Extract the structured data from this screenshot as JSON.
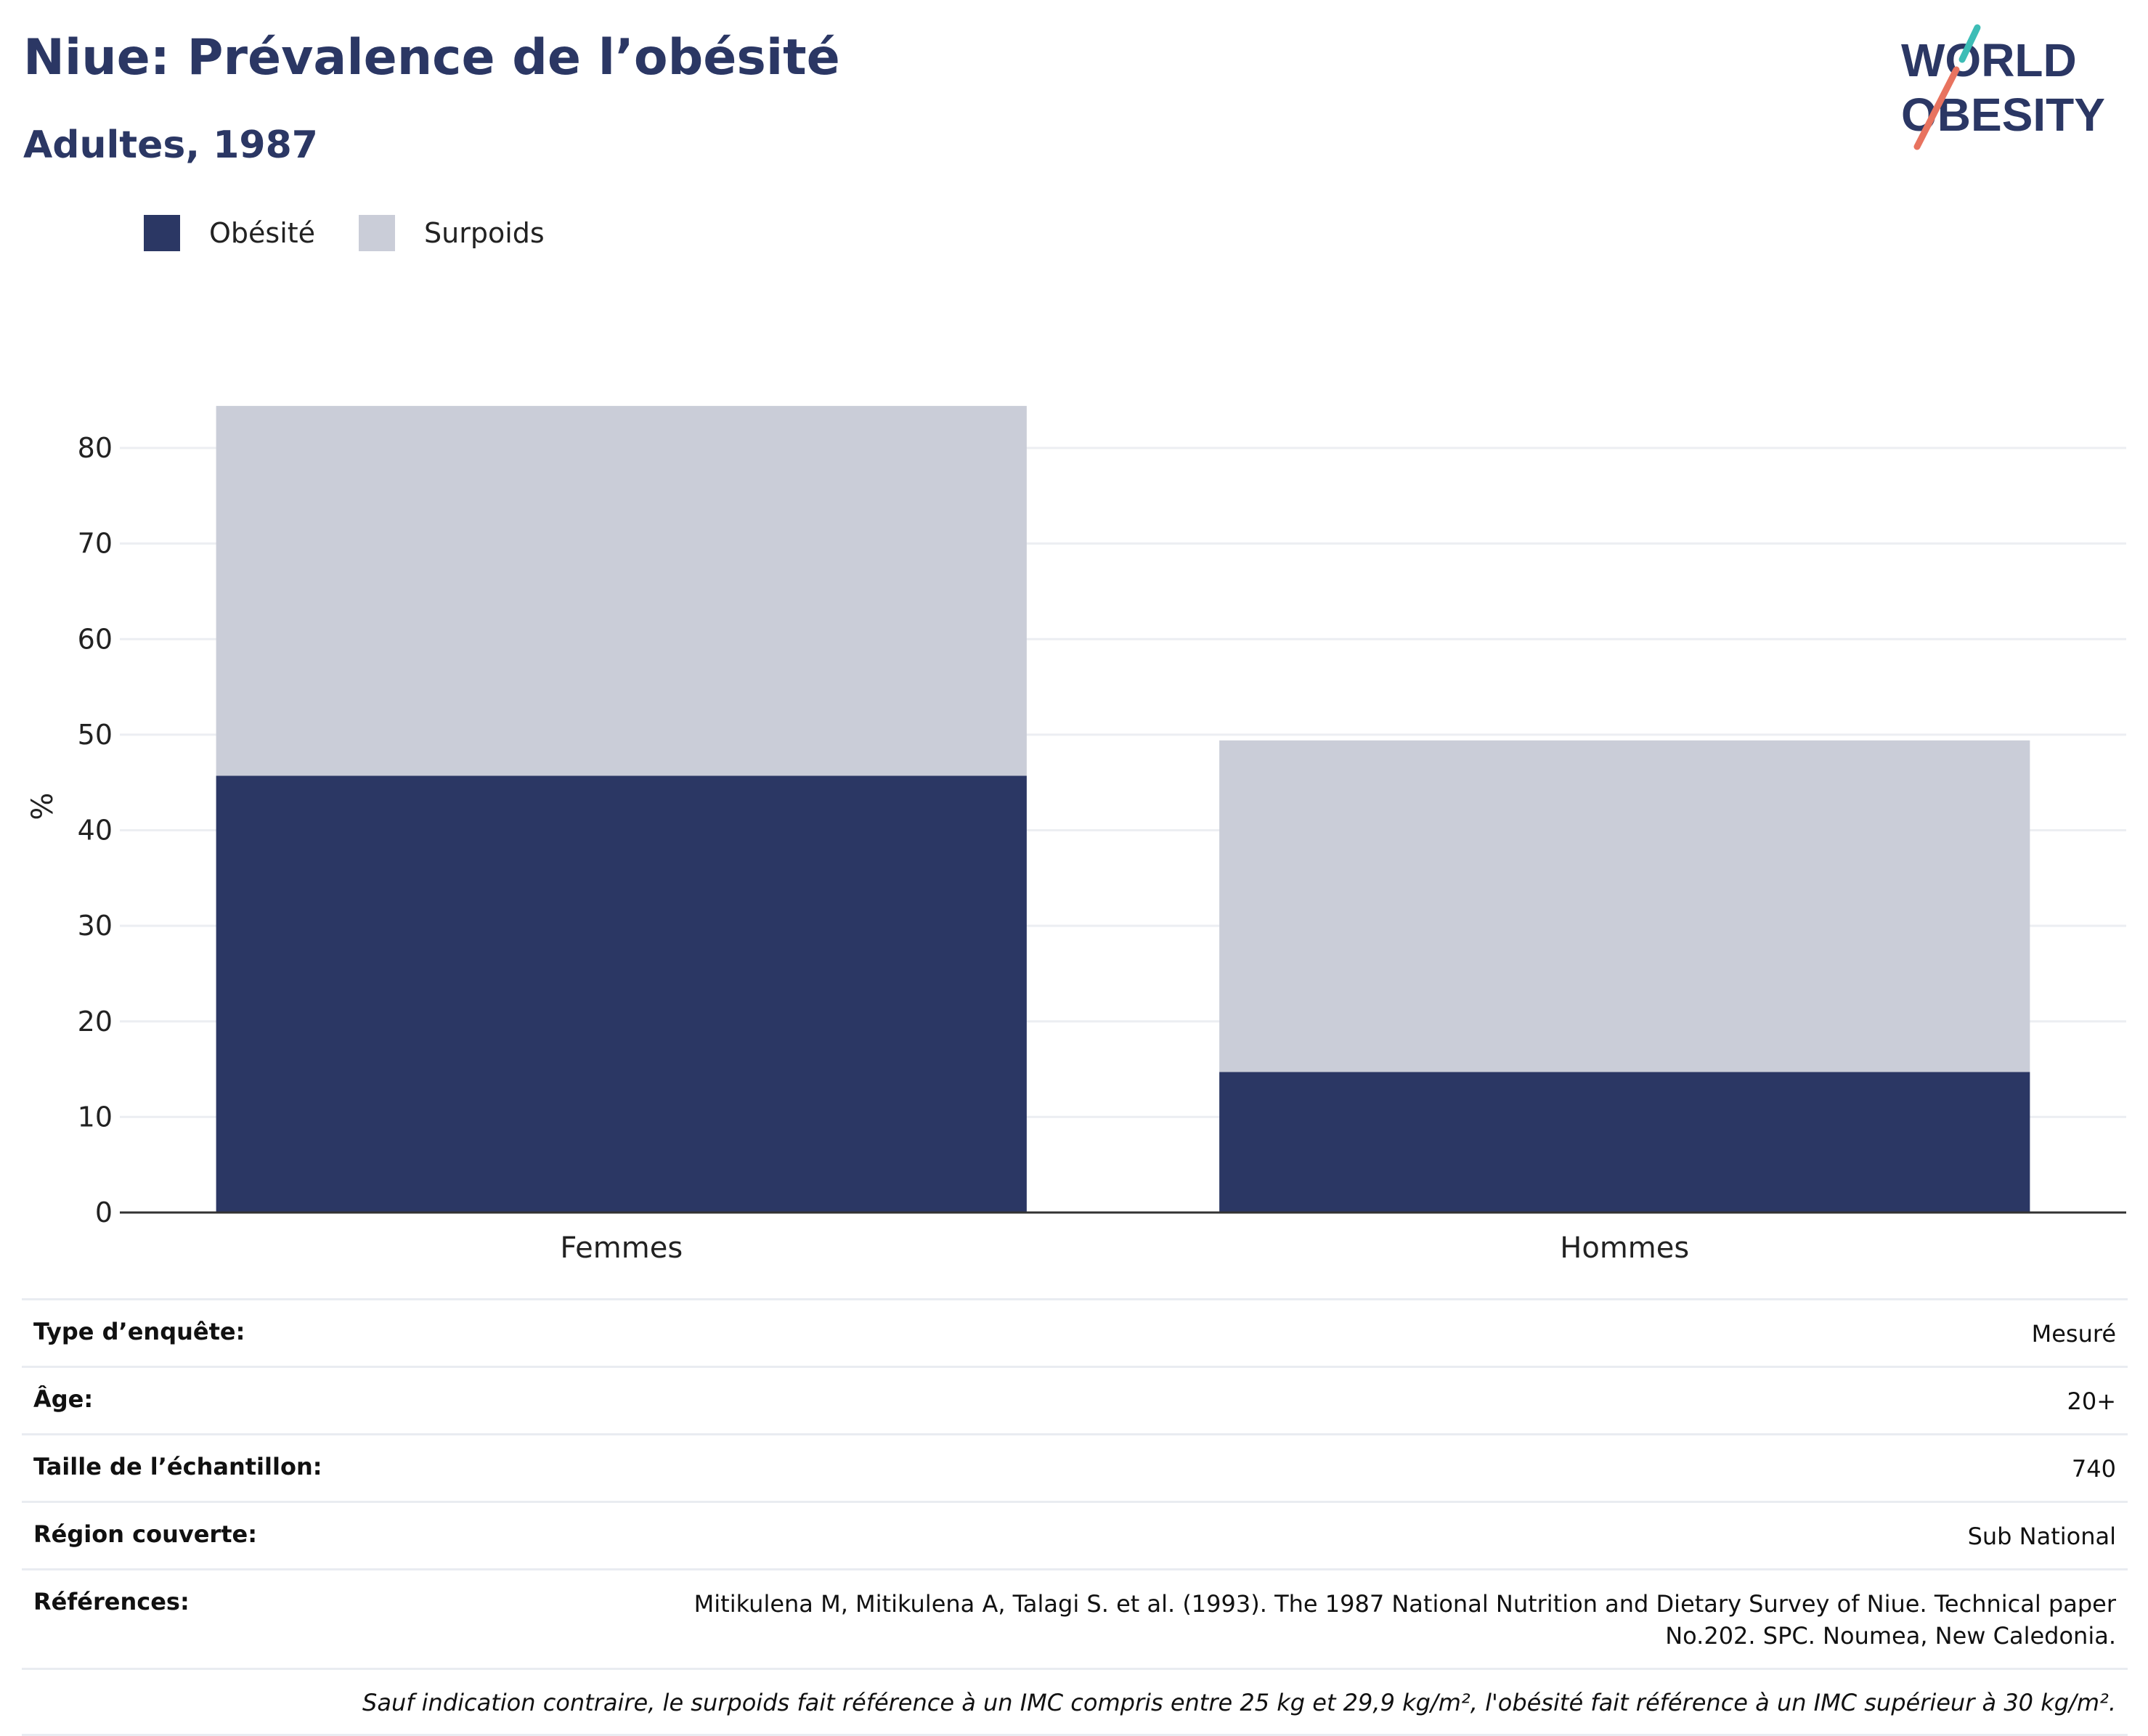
{
  "header": {
    "title": "Niue: Prévalence de l’obésité",
    "subtitle": "Adultes, 1987"
  },
  "logo": {
    "line1": "WORLD",
    "line2": "OBESITY",
    "accent_teal": "#3dbdb6",
    "accent_coral": "#e8735f"
  },
  "colors": {
    "obesity": "#2b3764",
    "overweight": "#cacdd8",
    "grid": "#eceef2",
    "axis": "#333333"
  },
  "chart_data": {
    "type": "bar",
    "stacked": true,
    "categories": [
      "Femmes",
      "Hommes"
    ],
    "series": [
      {
        "name": "Obésité",
        "values": [
          45.7,
          14.7
        ]
      },
      {
        "name": "Surpoids",
        "values": [
          38.7,
          34.7
        ]
      }
    ],
    "ylabel": "%",
    "ylim": [
      0,
      85
    ],
    "yticks": [
      0,
      10,
      20,
      30,
      40,
      50,
      60,
      70,
      80
    ],
    "grid": true,
    "legend_position": "top-left"
  },
  "meta": {
    "rows": [
      {
        "key": "Type d’enquête:",
        "value": "Mesuré"
      },
      {
        "key": "Âge:",
        "value": "20+"
      },
      {
        "key": "Taille de l’échantillon:",
        "value": "740"
      },
      {
        "key": "Région couverte:",
        "value": "Sub National"
      },
      {
        "key": "Références:",
        "value": "Mitikulena M, Mitikulena A, Talagi S. et al. (1993). The 1987 National Nutrition and Dietary Survey of Niue. Technical paper No.202. SPC. Noumea, New Caledonia."
      }
    ],
    "note": "Sauf indication contraire, le surpoids fait référence à un IMC compris entre 25 kg et 29,9 kg/m², l'obésité fait référence à un IMC supérieur à 30 kg/m²."
  }
}
